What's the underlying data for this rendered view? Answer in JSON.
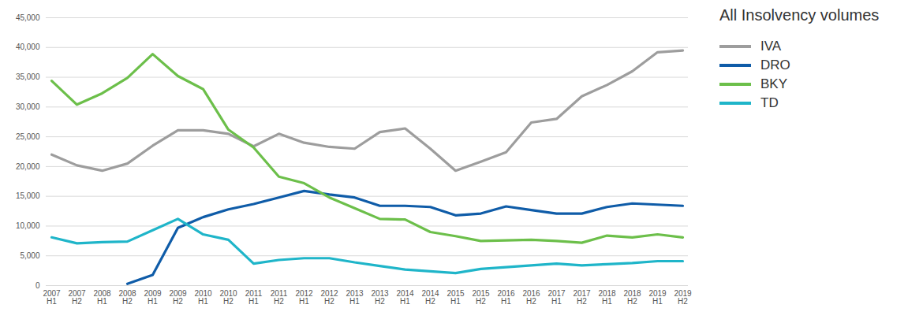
{
  "chart_data": {
    "type": "line",
    "title": "All Insolvency volumes",
    "categories": [
      "2007 H1",
      "2007 H2",
      "2008 H1",
      "2008 H2",
      "2009 H1",
      "2009 H2",
      "2010 H1",
      "2010 H2",
      "2011 H1",
      "2011 H2",
      "2012 H1",
      "2012 H2",
      "2013 H1",
      "2013 H2",
      "2014 H1",
      "2014 H2",
      "2015 H1",
      "2015 H2",
      "2016 H1",
      "2016 H2",
      "2017 H1",
      "2017 H2",
      "2018 H1",
      "2018 H2",
      "2019 H1",
      "2019 H2"
    ],
    "series": [
      {
        "name": "IVA",
        "color": "#9d9d9d",
        "values": [
          22000,
          20200,
          19300,
          20500,
          23500,
          26100,
          26100,
          25500,
          23400,
          25500,
          24000,
          23300,
          23000,
          25800,
          26400,
          23000,
          19300,
          20800,
          22400,
          27400,
          28000,
          31800,
          33700,
          36000,
          39200,
          39500
        ]
      },
      {
        "name": "DRO",
        "color": "#0f5ca8",
        "values": [
          null,
          null,
          null,
          300,
          1800,
          9700,
          11500,
          12800,
          13700,
          14800,
          15900,
          15300,
          14800,
          13400,
          13400,
          13200,
          11800,
          12100,
          13300,
          12700,
          12100,
          12100,
          13200,
          13800,
          13600,
          13400
        ]
      },
      {
        "name": "BKY",
        "color": "#6cbf4a",
        "values": [
          34400,
          30400,
          32300,
          34900,
          38900,
          35200,
          33000,
          26200,
          23200,
          18300,
          17200,
          14800,
          13000,
          11200,
          11100,
          9000,
          8300,
          7500,
          7600,
          7700,
          7500,
          7200,
          8400,
          8100,
          8600,
          8100
        ]
      },
      {
        "name": "TD",
        "color": "#1fb5c9",
        "values": [
          8100,
          7100,
          7300,
          7400,
          9300,
          11200,
          8600,
          7700,
          3700,
          4300,
          4600,
          4600,
          3900,
          3300,
          2700,
          2400,
          2100,
          2800,
          3100,
          3400,
          3700,
          3400,
          3600,
          3800,
          4100,
          4100
        ]
      }
    ],
    "ylim": [
      0,
      45000
    ],
    "yticks": [
      0,
      {
        "value": 5000,
        "label": "5,000"
      },
      {
        "value": 10000,
        "label": "10,000"
      },
      {
        "value": 15000,
        "label": "15,000"
      },
      {
        "value": 20000,
        "label": "20,000"
      },
      {
        "value": 25000,
        "label": "25,000"
      },
      {
        "value": 30000,
        "label": "30,000"
      },
      {
        "value": 35000,
        "label": "35,000"
      },
      {
        "value": 40000,
        "label": "40,000"
      },
      {
        "value": 45000,
        "label": "45,000"
      }
    ],
    "grid": true,
    "legend": "right"
  }
}
